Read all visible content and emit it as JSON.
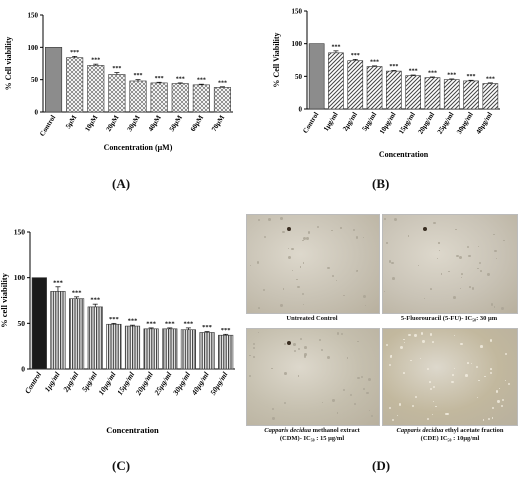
{
  "chart_data": [
    {
      "type": "bar",
      "panel": "(A)",
      "ylabel": "% Cell viability",
      "xlabel": "Concentration (μM)",
      "ylim": [
        0,
        150
      ],
      "yticks": [
        "0",
        "50",
        "100",
        "150"
      ],
      "categories": [
        "Control",
        "5μM",
        "10μM",
        "20μM",
        "30μM",
        "40μM",
        "50μM",
        "60μM",
        "70μM"
      ],
      "values": [
        100,
        84,
        72,
        58,
        48,
        45,
        44,
        42,
        38
      ],
      "errors": [
        0,
        2,
        2,
        3,
        2,
        1,
        1,
        1,
        1
      ],
      "significance": [
        "",
        "***",
        "***",
        "***",
        "***",
        "***",
        "***",
        "***",
        "***"
      ],
      "colors": {
        "control": "#8c8c8c",
        "bar_pattern": "crosshatch"
      }
    },
    {
      "type": "bar",
      "panel": "(B)",
      "ylabel": "% Cell Viability",
      "xlabel": "Concentration",
      "ylim": [
        0,
        150
      ],
      "yticks": [
        "0",
        "50",
        "100",
        "150"
      ],
      "categories": [
        "Control",
        "1μg/ml",
        "2μg/ml",
        "5μg/ml",
        "10μg/ml",
        "15μg/ml",
        "20μg/ml",
        "25μg/ml",
        "30μg/ml",
        "40μg/ml"
      ],
      "values": [
        100,
        86,
        74,
        65,
        58,
        51,
        48,
        45,
        43,
        39
      ],
      "errors": [
        0,
        3,
        2,
        1,
        1,
        1,
        1,
        1,
        1,
        1
      ],
      "significance": [
        "",
        "***",
        "***",
        "***",
        "***",
        "***",
        "***",
        "***",
        "***",
        "***"
      ],
      "colors": {
        "control": "#8c8c8c",
        "bar_pattern": "diagonal"
      }
    },
    {
      "type": "bar",
      "panel": "(C)",
      "ylabel": "% cell viability",
      "xlabel": "Concentration",
      "ylim": [
        0,
        150
      ],
      "yticks": [
        "0",
        "50",
        "100",
        "150"
      ],
      "categories": [
        "Control",
        "1μg/ml",
        "2μg/ml",
        "5μg/ml",
        "10μg/ml",
        "15μg/ml",
        "20μg/ml",
        "25μg/ml",
        "30μg/ml",
        "40μg/ml",
        "50μg/ml"
      ],
      "values": [
        100,
        85,
        77,
        68,
        49,
        47,
        44,
        44,
        43,
        40,
        37
      ],
      "errors": [
        0,
        5,
        2,
        3,
        1,
        1,
        1,
        1,
        2,
        1,
        1
      ],
      "significance": [
        "",
        "***",
        "***",
        "***",
        "***",
        "***",
        "***",
        "***",
        "***",
        "***",
        "***"
      ],
      "colors": {
        "control": "#1a1a1a",
        "bar_pattern": "vertical-stripes"
      }
    }
  ],
  "panels": {
    "a": "(A)",
    "b": "(B)",
    "c": "(C)",
    "d": "(D)"
  },
  "micrographs": [
    {
      "caption_line1": "Untreated Control",
      "caption_line2": "",
      "tint": "#c8c2b4"
    },
    {
      "caption_line1": "5-Fluorouracil (5-FU)- IC₅₀: 30 μm",
      "caption_line2": "",
      "tint": "#c9c3b6"
    },
    {
      "caption_italic": "Capparis decidua",
      "caption_line1": " methanol extract",
      "caption_line2": "(CDM)- IC₅₀ : 15 μg/ml",
      "tint": "#c5bfae"
    },
    {
      "caption_italic": "Capparis decidua",
      "caption_line1": " ethyl acetate fraction",
      "caption_line2": "(CDE) IC₅₀ : 10μg/ml",
      "tint": "#c2b89e"
    }
  ]
}
